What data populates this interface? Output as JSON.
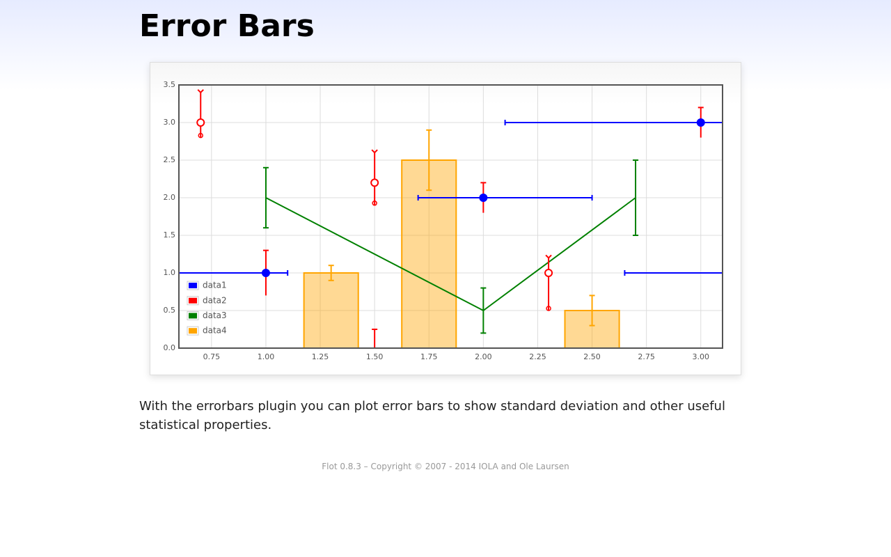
{
  "header": {
    "title": "Error Bars"
  },
  "chart_data": {
    "type": "errorbar",
    "xlim": [
      0.6,
      3.1
    ],
    "ylim": [
      0,
      3.5
    ],
    "xticks": [
      0.75,
      {
        "value": 1,
        "label": "1.00"
      },
      1.25,
      {
        "value": 1.5,
        "label": "1.50"
      },
      1.75,
      {
        "value": 2,
        "label": "2.00"
      },
      2.25,
      {
        "value": 2.5,
        "label": "2.50"
      },
      2.75,
      {
        "value": 3,
        "label": "3.00"
      }
    ],
    "yticks": [
      {
        "value": 0,
        "label": "0.0"
      },
      0.5,
      {
        "value": 1,
        "label": "1.0"
      },
      1.5,
      {
        "value": 2,
        "label": "2.0"
      },
      2.5,
      {
        "value": 3,
        "label": "3.0"
      },
      3.5
    ],
    "grid": true,
    "legend": "sw",
    "series": [
      {
        "name": "data1",
        "color": "#0000ff",
        "mode": "points",
        "filled": true,
        "x": [
          1,
          2,
          3,
          1.5,
          3.15
        ],
        "values": [
          1,
          2,
          3,
          -0.05,
          1
        ],
        "xerr_lower": [
          0.5,
          0.3,
          0.9,
          0.5,
          0.5
        ],
        "xerr_upper": [
          0.1,
          0.5,
          0.5,
          0.1,
          0.1
        ],
        "yerr": [
          0.3,
          0.2,
          0.2,
          0.3,
          0.3
        ],
        "yerr_color": "#ff0000",
        "xcap_upper": "-",
        "xcap_lower": "-",
        "ycap_upper": "-",
        "ycap_lower": "none"
      },
      {
        "name": "data2",
        "color": "#ff0000",
        "mode": "points",
        "filled": false,
        "x": [
          0.7,
          1.5,
          2.3
        ],
        "values": [
          3,
          2.2,
          1
        ],
        "yerr_lower": [
          0.2,
          0.3,
          0.5
        ],
        "yerr_upper": [
          0.4,
          0.4,
          0.2
        ],
        "ycap_upper": "arrow",
        "ycap_lower": "circle"
      },
      {
        "name": "data3",
        "color": "#008000",
        "mode": "lines",
        "x": [
          1,
          2,
          2.7
        ],
        "values": [
          2,
          0.5,
          2
        ],
        "yerr": [
          0.4,
          0.3,
          0.5
        ],
        "ycap_upper": "-",
        "ycap_lower": "-"
      },
      {
        "name": "data4",
        "color": "#ffa500",
        "mode": "bars",
        "bar_width": 0.25,
        "x": [
          1.3,
          1.75,
          2.5
        ],
        "values": [
          1,
          2.5,
          0.5
        ],
        "yerr": [
          0.1,
          0.4,
          0.2
        ],
        "ycap_upper": "-",
        "ycap_lower": "-"
      }
    ]
  },
  "description": "With the errorbars plugin you can plot error bars to show standard deviation and other useful statistical properties.",
  "footer": "Flot 0.8.3 – Copyright © 2007 - 2014 IOLA and Ole Laursen"
}
